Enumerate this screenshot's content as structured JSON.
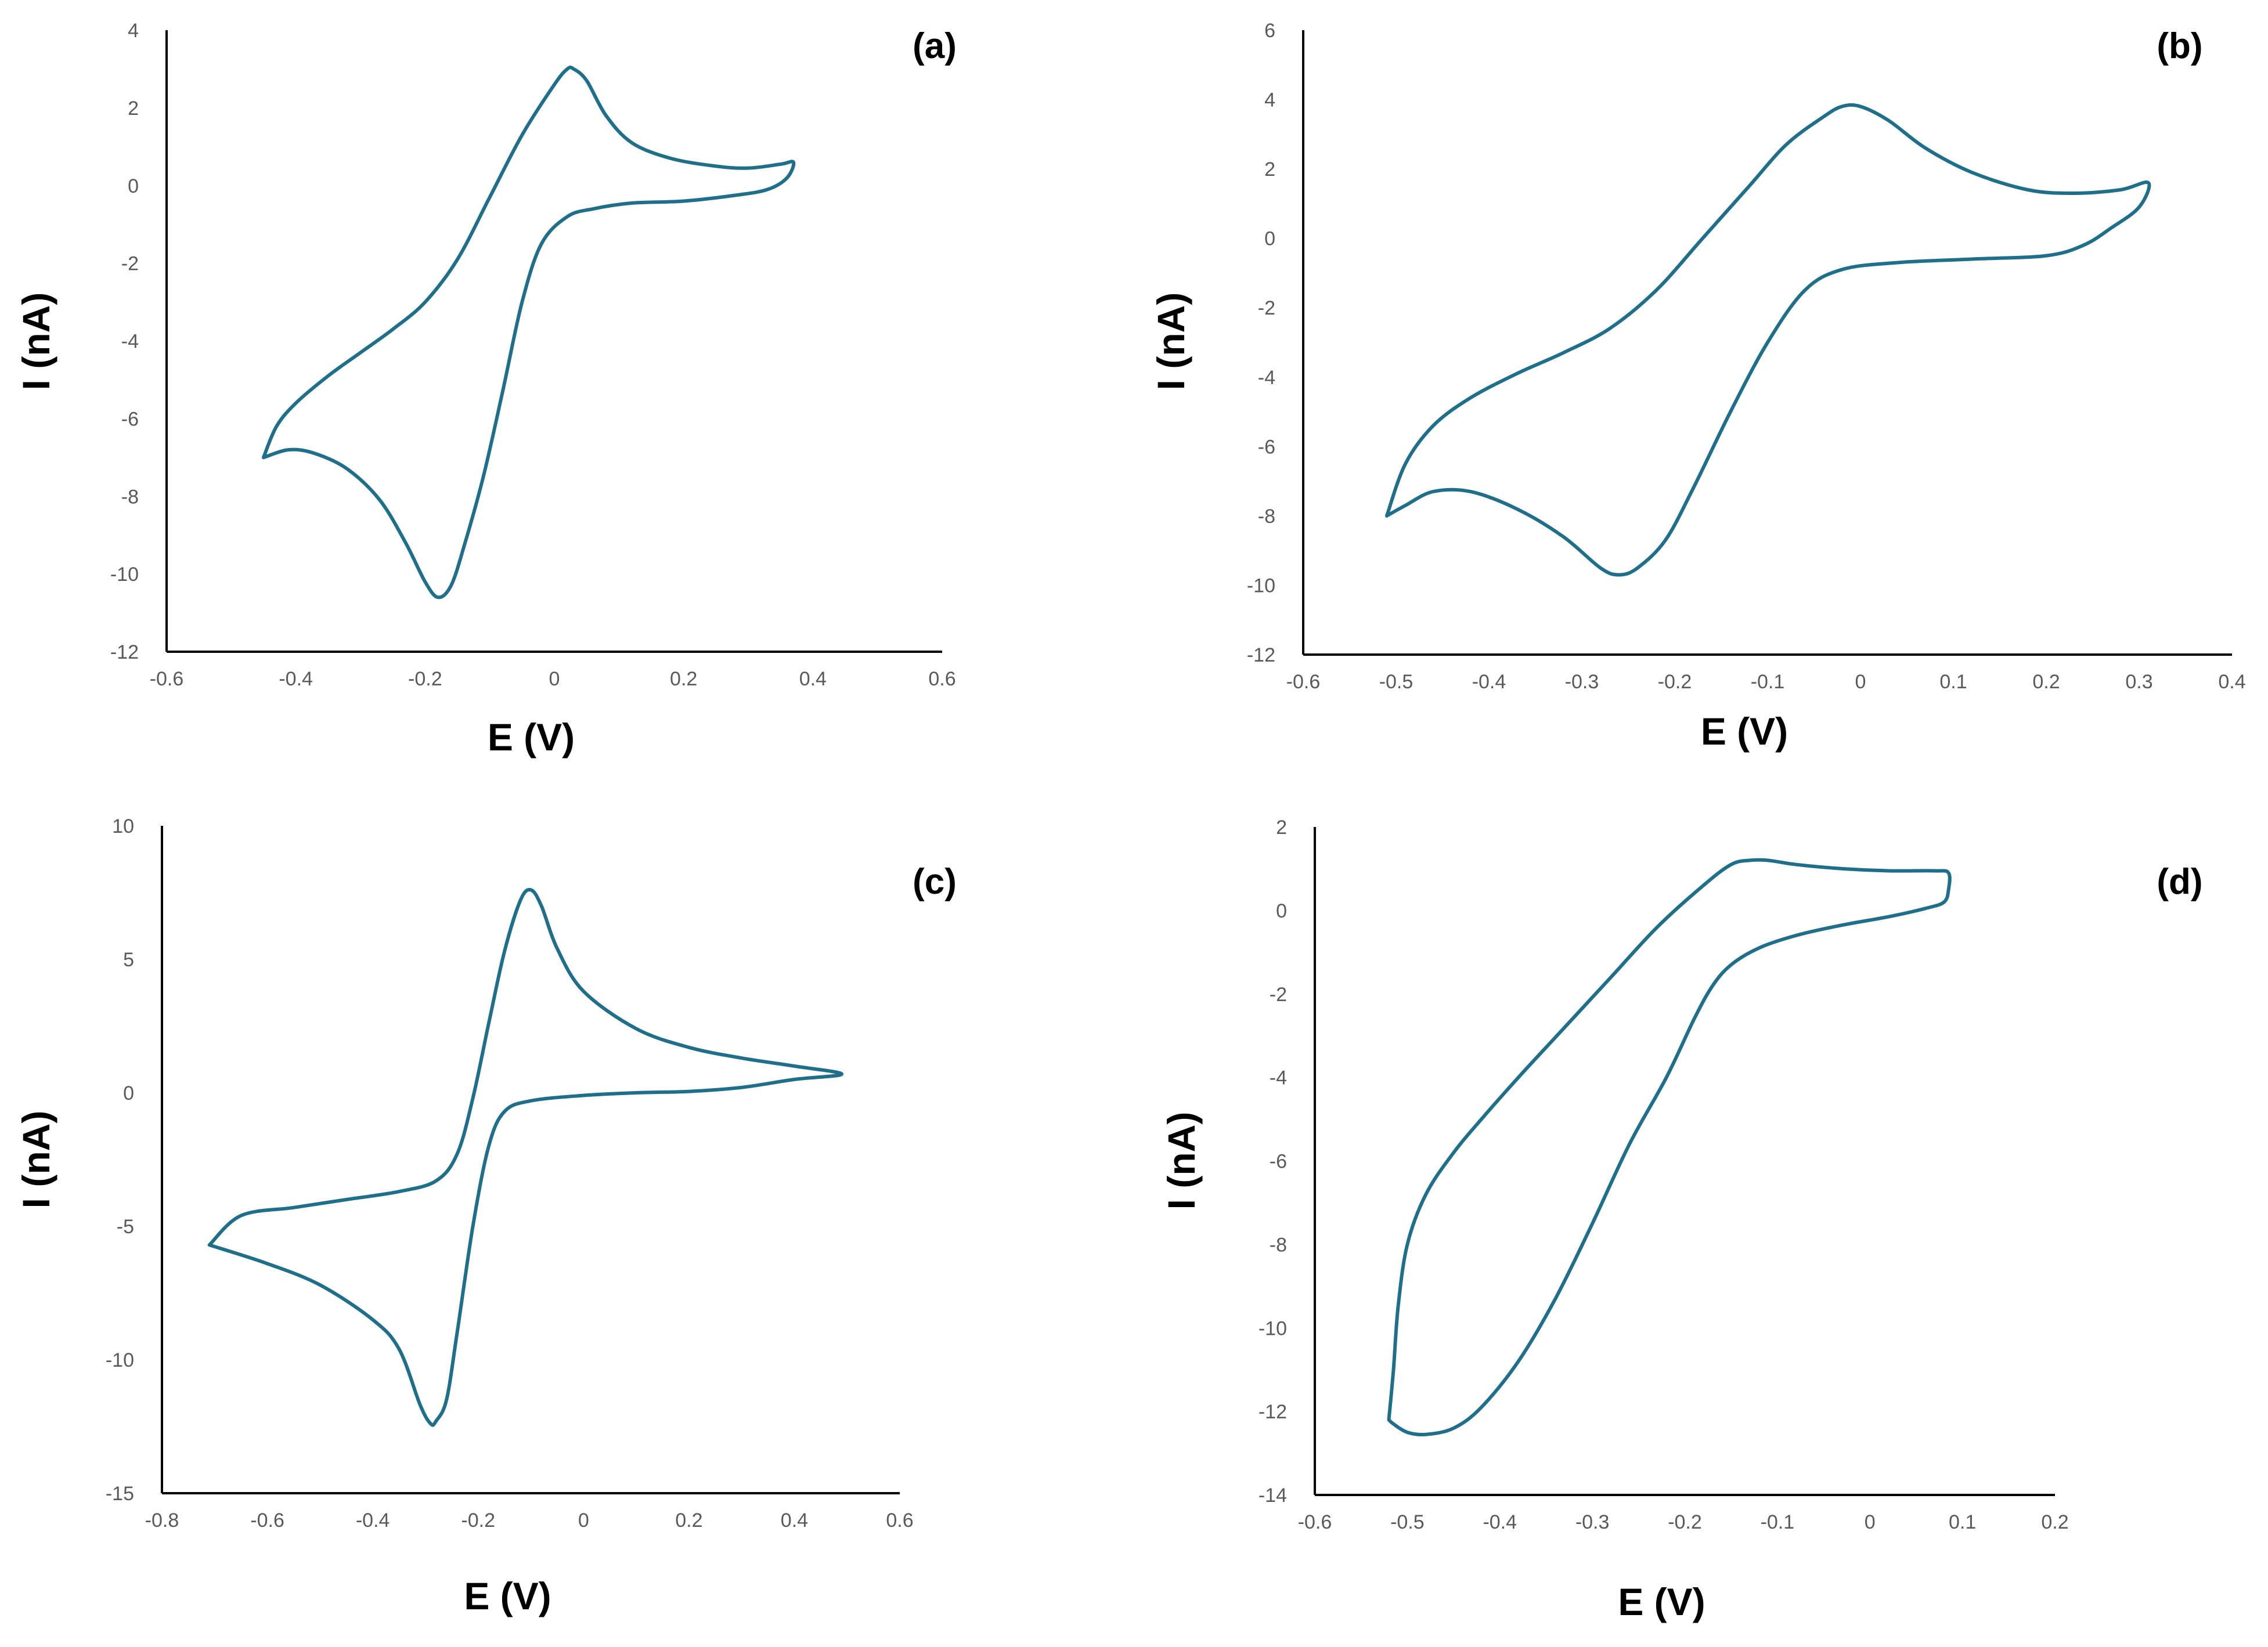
{
  "figure": {
    "background_color": "#ffffff",
    "line_color": "#1f6f8b"
  },
  "chart_data": [
    {
      "type": "line",
      "panel_label": "(a)",
      "xlabel": "E (V)",
      "ylabel": "I (nA)",
      "xlim": [
        -0.6,
        0.6
      ],
      "ylim": [
        -12,
        4
      ],
      "xticks": [
        -0.6,
        -0.4,
        -0.2,
        0,
        0.2,
        0.4,
        0.6
      ],
      "xtick_labels": [
        "-0.6",
        "-0.4",
        "-0.2",
        "0",
        "0.2",
        "0.4",
        "0.6"
      ],
      "yticks": [
        -12,
        -10,
        -8,
        -6,
        -4,
        -2,
        0,
        2,
        4
      ],
      "ytick_labels": [
        "-12",
        "-10",
        "-8",
        "-6",
        "-4",
        "-2",
        "0",
        "2",
        "4"
      ],
      "grid": false,
      "series": [
        {
          "name": "cyclic voltammogram",
          "x": [
            -0.45,
            -0.43,
            -0.4,
            -0.35,
            -0.3,
            -0.25,
            -0.2,
            -0.15,
            -0.1,
            -0.05,
            0.0,
            0.02,
            0.03,
            0.05,
            0.08,
            0.12,
            0.18,
            0.25,
            0.3,
            0.35,
            0.37,
            0.36,
            0.33,
            0.28,
            0.2,
            0.12,
            0.06,
            0.02,
            -0.02,
            -0.05,
            -0.08,
            -0.11,
            -0.14,
            -0.16,
            -0.18,
            -0.2,
            -0.23,
            -0.27,
            -0.32,
            -0.37,
            -0.41,
            -0.45
          ],
          "y": [
            -7.0,
            -6.2,
            -5.6,
            -4.9,
            -4.3,
            -3.7,
            -3.0,
            -1.9,
            -0.3,
            1.3,
            2.6,
            3.0,
            3.0,
            2.7,
            1.8,
            1.1,
            0.7,
            0.5,
            0.45,
            0.55,
            0.6,
            0.2,
            -0.1,
            -0.25,
            -0.4,
            -0.45,
            -0.6,
            -0.8,
            -1.5,
            -3.0,
            -5.3,
            -7.5,
            -9.3,
            -10.3,
            -10.6,
            -10.2,
            -9.2,
            -8.1,
            -7.3,
            -6.9,
            -6.8,
            -7.0
          ]
        }
      ]
    },
    {
      "type": "line",
      "panel_label": "(b)",
      "xlabel": "E (V)",
      "ylabel": "I (nA)",
      "xlim": [
        -0.6,
        0.4
      ],
      "ylim": [
        -12,
        6
      ],
      "xticks": [
        -0.6,
        -0.5,
        -0.4,
        -0.3,
        -0.2,
        -0.1,
        0,
        0.1,
        0.2,
        0.3,
        0.4
      ],
      "xtick_labels": [
        "-0.6",
        "-0.5",
        "-0.4",
        "-0.3",
        "-0.2",
        "-0.1",
        "0",
        "0.1",
        "0.2",
        "0.3",
        "0.4"
      ],
      "yticks": [
        -12,
        -10,
        -8,
        -6,
        -4,
        -2,
        0,
        2,
        4,
        6
      ],
      "ytick_labels": [
        "-12",
        "-10",
        "-8",
        "-6",
        "-4",
        "-2",
        "0",
        "2",
        "4",
        "6"
      ],
      "grid": false,
      "series": [
        {
          "name": "cyclic voltammogram",
          "x": [
            -0.51,
            -0.49,
            -0.46,
            -0.42,
            -0.37,
            -0.32,
            -0.27,
            -0.22,
            -0.17,
            -0.12,
            -0.08,
            -0.04,
            -0.02,
            0.0,
            0.03,
            0.07,
            0.12,
            0.18,
            0.23,
            0.28,
            0.31,
            0.3,
            0.27,
            0.24,
            0.2,
            0.12,
            0.04,
            -0.02,
            -0.06,
            -0.1,
            -0.14,
            -0.18,
            -0.21,
            -0.24,
            -0.26,
            -0.28,
            -0.32,
            -0.37,
            -0.42,
            -0.46,
            -0.49,
            -0.51
          ],
          "y": [
            -8.0,
            -6.5,
            -5.4,
            -4.6,
            -3.9,
            -3.3,
            -2.6,
            -1.5,
            0.0,
            1.5,
            2.7,
            3.5,
            3.8,
            3.8,
            3.4,
            2.6,
            1.9,
            1.4,
            1.3,
            1.4,
            1.6,
            0.9,
            0.3,
            -0.2,
            -0.5,
            -0.6,
            -0.7,
            -0.9,
            -1.5,
            -3.0,
            -5.0,
            -7.2,
            -8.7,
            -9.5,
            -9.7,
            -9.5,
            -8.6,
            -7.8,
            -7.3,
            -7.3,
            -7.7,
            -8.0
          ]
        }
      ]
    },
    {
      "type": "line",
      "panel_label": "(c)",
      "xlabel": "E (V)",
      "ylabel": "I (nA)",
      "xlim": [
        -0.8,
        0.6
      ],
      "ylim": [
        -15,
        10
      ],
      "xticks": [
        -0.8,
        -0.6,
        -0.4,
        -0.2,
        0,
        0.2,
        0.4,
        0.6
      ],
      "xtick_labels": [
        "-0.8",
        "-0.6",
        "-0.4",
        "-0.2",
        "0",
        "0.2",
        "0.4",
        "0.6"
      ],
      "yticks": [
        -15,
        -10,
        -5,
        0,
        5,
        10
      ],
      "ytick_labels": [
        "-15",
        "-10",
        "-5",
        "0",
        "5",
        "10"
      ],
      "grid": false,
      "series": [
        {
          "name": "cyclic voltammogram",
          "x": [
            -0.71,
            -0.65,
            -0.55,
            -0.45,
            -0.35,
            -0.28,
            -0.24,
            -0.21,
            -0.18,
            -0.15,
            -0.12,
            -0.1,
            -0.08,
            -0.05,
            0.0,
            0.1,
            0.2,
            0.3,
            0.4,
            0.49,
            0.4,
            0.3,
            0.2,
            0.1,
            0.0,
            -0.1,
            -0.15,
            -0.18,
            -0.21,
            -0.24,
            -0.26,
            -0.28,
            -0.29,
            -0.31,
            -0.35,
            -0.4,
            -0.5,
            -0.6,
            -0.71
          ],
          "y": [
            -5.7,
            -4.6,
            -4.3,
            -4.0,
            -3.7,
            -3.3,
            -2.3,
            -0.2,
            2.6,
            5.3,
            7.2,
            7.6,
            7.0,
            5.4,
            3.8,
            2.4,
            1.7,
            1.3,
            1.0,
            0.7,
            0.5,
            0.2,
            0.05,
            0.0,
            -0.1,
            -0.3,
            -0.7,
            -2.0,
            -5.0,
            -9.0,
            -11.5,
            -12.3,
            -12.4,
            -11.7,
            -9.6,
            -8.5,
            -7.2,
            -6.4,
            -5.7
          ]
        }
      ]
    },
    {
      "type": "line",
      "panel_label": "(d)",
      "xlabel": "E (V)",
      "ylabel": "I (nA)",
      "xlim": [
        -0.6,
        0.2
      ],
      "ylim": [
        -14,
        2
      ],
      "xticks": [
        -0.6,
        -0.5,
        -0.4,
        -0.3,
        -0.2,
        -0.1,
        0,
        0.1,
        0.2
      ],
      "xtick_labels": [
        "-0.6",
        "-0.5",
        "-0.4",
        "-0.3",
        "-0.2",
        "-0.1",
        "0",
        "0.1",
        "0.2"
      ],
      "yticks": [
        -14,
        -12,
        -10,
        -8,
        -6,
        -4,
        -2,
        0,
        2
      ],
      "ytick_labels": [
        "-14",
        "-12",
        "-10",
        "-8",
        "-6",
        "-4",
        "-2",
        "0",
        "2"
      ],
      "grid": false,
      "series": [
        {
          "name": "cyclic voltammogram",
          "x": [
            -0.52,
            -0.515,
            -0.51,
            -0.5,
            -0.48,
            -0.45,
            -0.42,
            -0.38,
            -0.33,
            -0.28,
            -0.23,
            -0.18,
            -0.15,
            -0.13,
            -0.11,
            -0.08,
            -0.03,
            0.02,
            0.07,
            0.085,
            0.085,
            0.08,
            0.06,
            0.02,
            -0.03,
            -0.08,
            -0.12,
            -0.15,
            -0.17,
            -0.19,
            -0.22,
            -0.26,
            -0.3,
            -0.34,
            -0.38,
            -0.42,
            -0.45,
            -0.48,
            -0.5,
            -0.515,
            -0.52
          ],
          "y": [
            -12.2,
            -11.0,
            -9.5,
            -8.0,
            -6.8,
            -5.8,
            -5.0,
            -4.0,
            -2.8,
            -1.6,
            -0.4,
            0.6,
            1.1,
            1.2,
            1.2,
            1.1,
            1.0,
            0.95,
            0.95,
            0.9,
            0.5,
            0.2,
            0.05,
            -0.15,
            -0.35,
            -0.6,
            -0.9,
            -1.3,
            -1.8,
            -2.6,
            -4.0,
            -5.6,
            -7.5,
            -9.3,
            -10.8,
            -11.9,
            -12.4,
            -12.55,
            -12.5,
            -12.3,
            -12.2
          ]
        }
      ]
    }
  ]
}
